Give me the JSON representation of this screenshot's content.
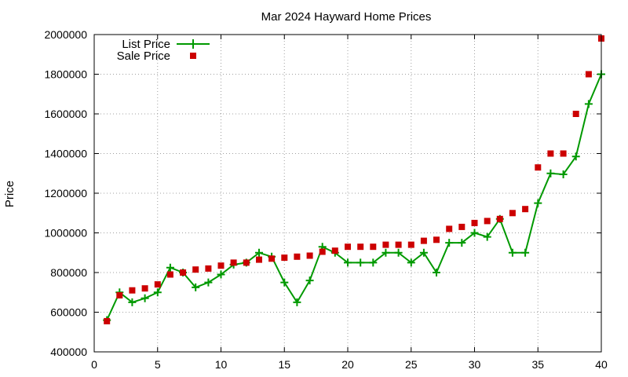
{
  "chart_data": {
    "type": "line",
    "title": "Mar 2024 Hayward Home Prices",
    "xlabel": "",
    "ylabel": "Price",
    "xlim": [
      0,
      40
    ],
    "ylim": [
      400000,
      2000000
    ],
    "xticks": [
      0,
      5,
      10,
      15,
      20,
      25,
      30,
      35,
      40
    ],
    "yticks": [
      400000,
      600000,
      800000,
      1000000,
      1200000,
      1400000,
      1600000,
      1800000,
      2000000
    ],
    "grid": true,
    "legend_position": "top-left",
    "x": [
      1,
      2,
      3,
      4,
      5,
      6,
      7,
      8,
      9,
      10,
      11,
      12,
      13,
      14,
      15,
      16,
      17,
      18,
      19,
      20,
      21,
      22,
      23,
      24,
      25,
      26,
      27,
      28,
      29,
      30,
      31,
      32,
      33,
      34,
      35,
      36,
      37,
      38,
      39,
      40
    ],
    "series": [
      {
        "name": "List Price",
        "style": "line+cross",
        "color": "#009900",
        "values": [
          560000,
          700000,
          650000,
          670000,
          700000,
          825000,
          800000,
          725000,
          750000,
          790000,
          840000,
          850000,
          900000,
          880000,
          750000,
          650000,
          760000,
          930000,
          900000,
          850000,
          850000,
          850000,
          900000,
          900000,
          850000,
          900000,
          800000,
          950000,
          950000,
          1000000,
          980000,
          1070000,
          900000,
          900000,
          1150000,
          1300000,
          1295000,
          1385000,
          1650000,
          1800000
        ]
      },
      {
        "name": "Sale Price",
        "style": "square",
        "color": "#cc0000",
        "values": [
          555000,
          685000,
          710000,
          720000,
          740000,
          790000,
          800000,
          815000,
          820000,
          835000,
          850000,
          850000,
          865000,
          870000,
          875000,
          880000,
          885000,
          905000,
          910000,
          930000,
          930000,
          930000,
          940000,
          940000,
          940000,
          960000,
          965000,
          1020000,
          1030000,
          1050000,
          1060000,
          1070000,
          1100000,
          1120000,
          1330000,
          1400000,
          1400000,
          1600000,
          1800000,
          1980000
        ]
      }
    ]
  }
}
